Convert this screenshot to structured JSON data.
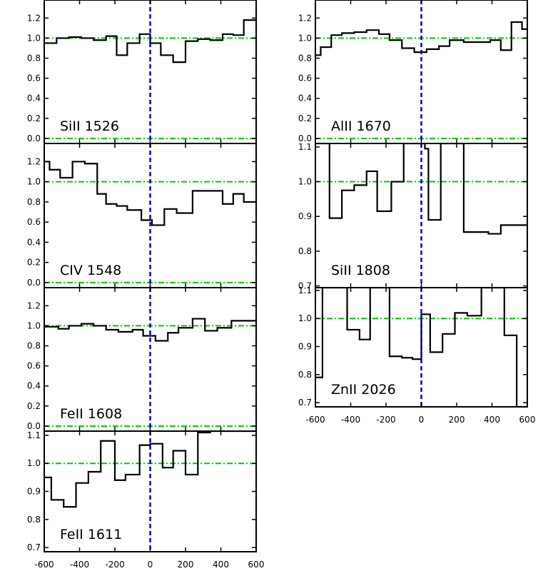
{
  "colors": {
    "data": "#000000",
    "continuum": "#00cc00",
    "zero_velocity": "#0000dd",
    "frame": "#000000"
  },
  "xaxis_ticks": [
    "-600",
    "-400",
    "-200",
    "0",
    "200",
    "400",
    "600"
  ],
  "chart_data": [
    {
      "type": "line",
      "style": "step",
      "label": "SiII 1526",
      "ylim": [
        -0.05,
        1.38
      ],
      "xlim": [
        -600,
        600
      ],
      "yticks": [
        "0.0",
        "0.2",
        "0.4",
        "0.6",
        "0.8",
        "1.0",
        "1.2"
      ],
      "ytick_values": [
        0,
        0.2,
        0.4,
        0.6,
        0.8,
        1.0,
        1.2
      ],
      "continuum": 1.0,
      "zero_line": 0.0,
      "x_tick_labels_shown": false,
      "x": [
        -600,
        -530,
        -460,
        -390,
        -320,
        -250,
        -190,
        -130,
        -60,
        0,
        60,
        130,
        200,
        270,
        340,
        410,
        470,
        530,
        600
      ],
      "y": [
        0.95,
        1.0,
        1.01,
        1.0,
        0.98,
        1.02,
        0.83,
        0.95,
        1.04,
        0.95,
        0.83,
        0.76,
        0.97,
        0.99,
        0.98,
        1.04,
        1.03,
        1.18,
        1.18
      ]
    },
    {
      "type": "line",
      "style": "step",
      "label": "CIV 1548",
      "ylim": [
        -0.05,
        1.38
      ],
      "xlim": [
        -600,
        600
      ],
      "yticks": [
        "0.0",
        "0.2",
        "0.4",
        "0.6",
        "0.8",
        "1.0",
        "1.2"
      ],
      "ytick_values": [
        0,
        0.2,
        0.4,
        0.6,
        0.8,
        1.0,
        1.2
      ],
      "continuum": 1.0,
      "zero_line": 0.0,
      "x_tick_labels_shown": false,
      "x": [
        -600,
        -570,
        -510,
        -440,
        -370,
        -300,
        -250,
        -190,
        -130,
        -50,
        10,
        80,
        150,
        240,
        330,
        410,
        470,
        530,
        600
      ],
      "y": [
        1.2,
        1.12,
        1.04,
        1.2,
        1.18,
        0.88,
        0.78,
        0.76,
        0.72,
        0.62,
        0.57,
        0.73,
        0.69,
        0.91,
        0.91,
        0.78,
        0.88,
        0.8,
        0.8
      ]
    },
    {
      "type": "line",
      "style": "step",
      "label": "FeII 1608",
      "ylim": [
        -0.05,
        1.38
      ],
      "xlim": [
        -600,
        600
      ],
      "yticks": [
        "0.0",
        "0.2",
        "0.4",
        "0.6",
        "0.8",
        "1.0",
        "1.2"
      ],
      "ytick_values": [
        0,
        0.2,
        0.4,
        0.6,
        0.8,
        1.0,
        1.2
      ],
      "continuum": 1.0,
      "zero_line": 0.0,
      "x_tick_labels_shown": false,
      "x": [
        -600,
        -520,
        -460,
        -390,
        -320,
        -250,
        -180,
        -100,
        -40,
        30,
        100,
        160,
        240,
        310,
        380,
        460,
        600
      ],
      "y": [
        0.99,
        0.97,
        1.0,
        1.02,
        1.0,
        0.96,
        0.94,
        0.96,
        0.9,
        0.85,
        0.93,
        0.98,
        1.07,
        0.95,
        0.98,
        1.05,
        1.05
      ]
    },
    {
      "type": "line",
      "style": "step",
      "label": "FeII 1611",
      "ylim": [
        0.685,
        1.115
      ],
      "xlim": [
        -600,
        600
      ],
      "yticks": [
        "0.7",
        "0.8",
        "0.9",
        "1.0",
        "1.1"
      ],
      "ytick_values": [
        0.7,
        0.8,
        0.9,
        1.0,
        1.1
      ],
      "continuum": 1.0,
      "zero_line": null,
      "x_tick_labels_shown": true,
      "x": [
        -600,
        -560,
        -490,
        -420,
        -350,
        -280,
        -200,
        -140,
        -60,
        0,
        70,
        130,
        200,
        270,
        340,
        600
      ],
      "y": [
        0.95,
        0.87,
        0.845,
        0.93,
        0.97,
        1.08,
        0.94,
        0.96,
        1.065,
        1.07,
        0.985,
        1.045,
        0.96,
        1.11,
        1.115,
        1.115
      ]
    },
    {
      "type": "line",
      "style": "step",
      "label": "AlII 1670",
      "ylim": [
        -0.05,
        1.38
      ],
      "xlim": [
        -600,
        600
      ],
      "yticks": [
        "0.0",
        "0.2",
        "0.4",
        "0.6",
        "0.8",
        "1.0",
        "1.2"
      ],
      "ytick_values": [
        0,
        0.2,
        0.4,
        0.6,
        0.8,
        1.0,
        1.2
      ],
      "continuum": 1.0,
      "zero_line": 0.0,
      "x_tick_labels_shown": false,
      "x": [
        -600,
        -570,
        -510,
        -450,
        -380,
        -310,
        -240,
        -180,
        -110,
        -40,
        30,
        100,
        160,
        240,
        320,
        390,
        450,
        510,
        570,
        600
      ],
      "y": [
        0.83,
        0.91,
        1.03,
        1.05,
        1.06,
        1.08,
        1.04,
        0.98,
        0.9,
        0.86,
        0.89,
        0.92,
        0.98,
        0.96,
        0.96,
        0.98,
        0.88,
        1.16,
        1.09,
        1.09
      ]
    },
    {
      "type": "line",
      "style": "step",
      "label": "SiII 1808",
      "ylim": [
        0.695,
        1.11
      ],
      "xlim": [
        -600,
        600
      ],
      "yticks": [
        "0.7",
        "0.8",
        "0.9",
        "1.0",
        "1.1"
      ],
      "ytick_values": [
        0.7,
        0.8,
        0.9,
        1.0,
        1.1
      ],
      "continuum": 1.0,
      "zero_line": null,
      "x_tick_labels_shown": false,
      "x": [
        -600,
        -520,
        -450,
        -380,
        -310,
        -250,
        -170,
        -100,
        -80,
        20,
        40,
        110,
        240,
        380,
        450,
        600
      ],
      "y": [
        1.11,
        0.895,
        0.975,
        0.99,
        1.03,
        0.915,
        1.0,
        1.11,
        1.11,
        1.095,
        0.89,
        1.11,
        0.855,
        0.85,
        0.875,
        0.875
      ]
    },
    {
      "type": "line",
      "style": "step",
      "label": "ZnII 2026",
      "ylim": [
        0.685,
        1.11
      ],
      "xlim": [
        -600,
        600
      ],
      "yticks": [
        "0.7",
        "0.8",
        "0.9",
        "1.0",
        "1.1"
      ],
      "ytick_values": [
        0.7,
        0.8,
        0.9,
        1.0,
        1.1
      ],
      "continuum": 1.0,
      "zero_line": null,
      "x_tick_labels_shown": true,
      "x": [
        -600,
        -560,
        -420,
        -350,
        -290,
        -180,
        -110,
        -50,
        0,
        50,
        120,
        190,
        260,
        340,
        470,
        540,
        600
      ],
      "y": [
        0.79,
        1.11,
        0.96,
        0.925,
        1.11,
        0.865,
        0.86,
        0.855,
        1.015,
        0.88,
        0.945,
        1.02,
        1.01,
        1.11,
        0.94,
        0.685,
        0.685
      ]
    }
  ]
}
